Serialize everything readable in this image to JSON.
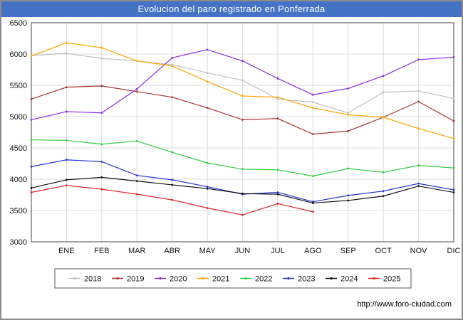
{
  "title": "Evolucion del paro registrado en Ponferrada",
  "title_bar_color": "#4472c4",
  "footer": {
    "url": "http://www.foro-ciudad.com"
  },
  "chart_data": {
    "type": "line",
    "title": "Evolucion del paro registrado en Ponferrada",
    "categories": [
      "ENE",
      "FEB",
      "MAR",
      "ABR",
      "MAY",
      "JUN",
      "JUL",
      "AGO",
      "SEP",
      "OCT",
      "NOV",
      "DIC"
    ],
    "note": "first value of each series is plotted on the left axis before ENE",
    "xlabel": "",
    "ylabel": "",
    "ylim": [
      3000,
      6500
    ],
    "yticks": [
      3000,
      3500,
      4000,
      4500,
      5000,
      5500,
      6000,
      6500
    ],
    "grid": true,
    "legend_position": "bottom",
    "series": [
      {
        "name": "2018",
        "color": "#c0c0c0",
        "values": [
          5975,
          6010,
          5930,
          5890,
          5830,
          5700,
          5580,
          5280,
          5230,
          5060,
          5390,
          5410,
          5290
        ]
      },
      {
        "name": "2019",
        "color": "#a83232",
        "values": [
          5280,
          5470,
          5490,
          5400,
          5310,
          5140,
          4950,
          4970,
          4720,
          4770,
          4990,
          5240,
          4930
        ]
      },
      {
        "name": "2020",
        "color": "#8a2be2",
        "values": [
          4950,
          5080,
          5060,
          5440,
          5940,
          6070,
          5890,
          5610,
          5350,
          5450,
          5650,
          5910,
          5950
        ]
      },
      {
        "name": "2021",
        "color": "#ffa500",
        "values": [
          5970,
          6180,
          6100,
          5890,
          5810,
          5560,
          5330,
          5310,
          5140,
          5030,
          4990,
          4810,
          4650
        ]
      },
      {
        "name": "2022",
        "color": "#2ecc40",
        "values": [
          4630,
          4620,
          4560,
          4610,
          4430,
          4260,
          4160,
          4150,
          4050,
          4170,
          4110,
          4220,
          4180
        ]
      },
      {
        "name": "2023",
        "color": "#2233cc",
        "values": [
          4200,
          4310,
          4280,
          4060,
          3990,
          3880,
          3760,
          3790,
          3640,
          3740,
          3810,
          3930,
          3830
        ]
      },
      {
        "name": "2024",
        "color": "#111111",
        "values": [
          3860,
          3990,
          4030,
          3970,
          3910,
          3850,
          3770,
          3760,
          3620,
          3660,
          3730,
          3890,
          3790
        ]
      },
      {
        "name": "2025",
        "color": "#e02020",
        "values": [
          3790,
          3900,
          3840,
          3760,
          3670,
          3540,
          3430,
          3610,
          3480
        ]
      }
    ]
  }
}
